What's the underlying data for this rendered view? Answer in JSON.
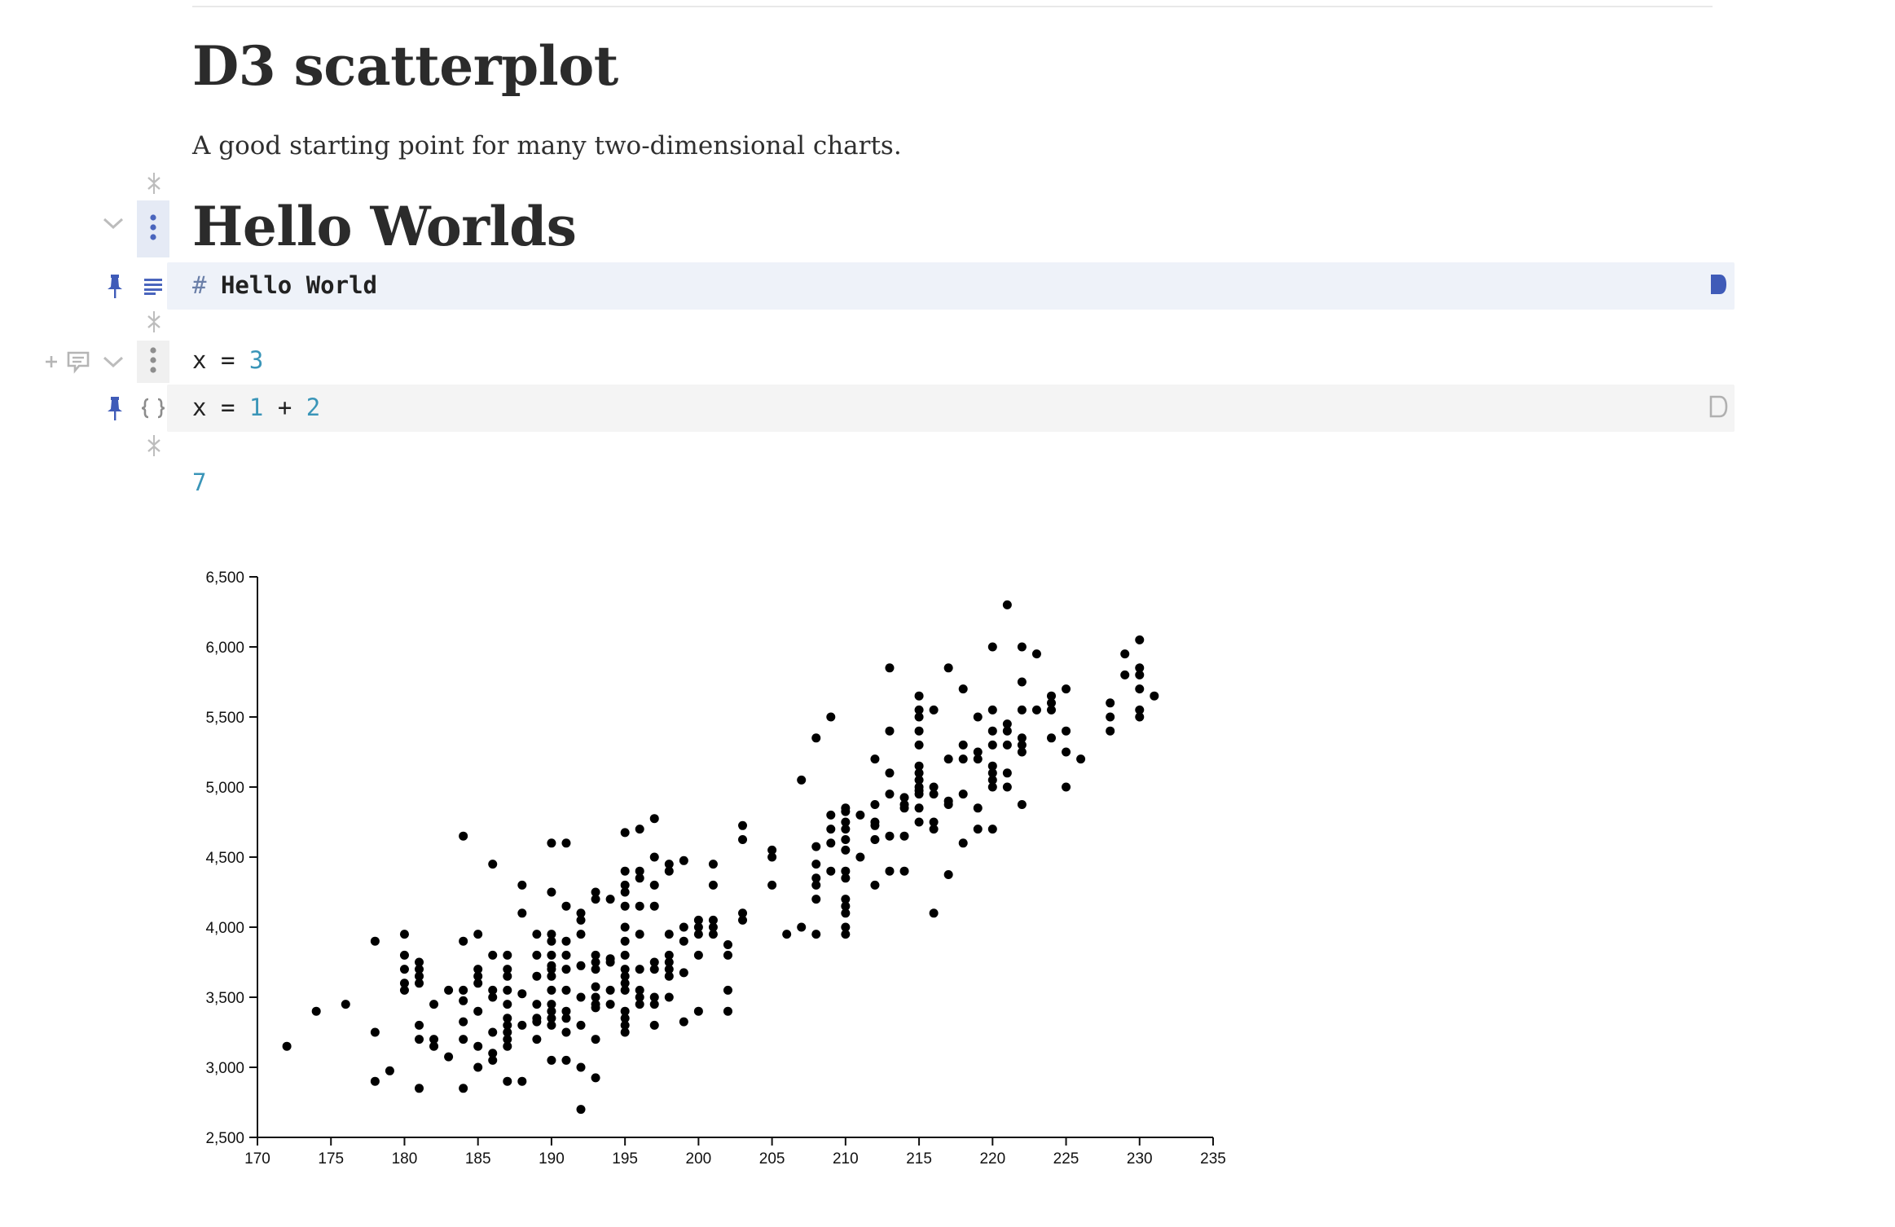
{
  "page": {
    "title": "D3 scatterplot",
    "subtitle": "A good starting point for many two-dimensional charts."
  },
  "cells": [
    {
      "kind": "markdown",
      "rendered_heading": "Hello Worlds",
      "source_hash": "#",
      "source_text": "Hello World",
      "pinned": true,
      "run_state": "stale"
    },
    {
      "kind": "code",
      "output_tokens": {
        "var": "x",
        "eq": "=",
        "value": "3"
      },
      "source_tokens": {
        "var": "x",
        "eq": "=",
        "a": "1",
        "plus": "+",
        "b": "2"
      },
      "pinned": true,
      "run_state": "fresh"
    }
  ],
  "standalone_output": "7",
  "icons": {
    "add": "plus-icon",
    "comment": "comment-icon",
    "collapse": "chevron-down-icon",
    "menu": "vertical-ellipsis-icon",
    "pin": "pin-icon",
    "markdown_mode": "markdown-lines-icon",
    "code_mode": "braces-icon",
    "run": "play-icon",
    "insert": "insert-cell-icon"
  },
  "colors": {
    "accent_blue": "#3f5bb8",
    "number_teal": "#3a95b8",
    "markdown_cell_bg": "#eef2f9",
    "code_cell_bg": "#f4f4f4",
    "gutter_gray": "#b9b9b9"
  },
  "chart_data": {
    "type": "scatter",
    "xlim": [
      170,
      235
    ],
    "ylim": [
      2500,
      6500
    ],
    "x_ticks": [
      170,
      175,
      180,
      185,
      190,
      195,
      200,
      205,
      210,
      215,
      220,
      225,
      230,
      235
    ],
    "y_ticks": [
      2500,
      3000,
      3500,
      4000,
      4500,
      5000,
      5500,
      6000,
      6500
    ],
    "x_tick_labels": [
      "170",
      "175",
      "180",
      "185",
      "190",
      "195",
      "200",
      "205",
      "210",
      "215",
      "220",
      "225",
      "230",
      "235"
    ],
    "y_tick_labels": [
      "2,500",
      "3,000",
      "3,500",
      "4,000",
      "4,500",
      "5,000",
      "5,500",
      "6,000",
      "6,500"
    ],
    "grid": false,
    "points": [
      [
        172,
        3150
      ],
      [
        174,
        3400
      ],
      [
        176,
        3450
      ],
      [
        178,
        3250
      ],
      [
        178,
        2900
      ],
      [
        178,
        3900
      ],
      [
        179,
        2975
      ],
      [
        180,
        3950
      ],
      [
        180,
        3800
      ],
      [
        180,
        3700
      ],
      [
        180,
        3600
      ],
      [
        180,
        3550
      ],
      [
        181,
        3750
      ],
      [
        181,
        3700
      ],
      [
        181,
        3650
      ],
      [
        181,
        3600
      ],
      [
        181,
        3300
      ],
      [
        181,
        3200
      ],
      [
        181,
        2850
      ],
      [
        182,
        3450
      ],
      [
        182,
        3200
      ],
      [
        182,
        3150
      ],
      [
        183,
        3550
      ],
      [
        183,
        3075
      ],
      [
        184,
        4650
      ],
      [
        184,
        3900
      ],
      [
        184,
        3550
      ],
      [
        184,
        3475
      ],
      [
        184,
        3325
      ],
      [
        184,
        3200
      ],
      [
        184,
        2850
      ],
      [
        185,
        3950
      ],
      [
        185,
        3700
      ],
      [
        185,
        3650
      ],
      [
        185,
        3600
      ],
      [
        185,
        3400
      ],
      [
        185,
        3150
      ],
      [
        185,
        3000
      ],
      [
        186,
        4450
      ],
      [
        186,
        3800
      ],
      [
        186,
        3550
      ],
      [
        186,
        3500
      ],
      [
        186,
        3250
      ],
      [
        186,
        3100
      ],
      [
        186,
        3050
      ],
      [
        187,
        3800
      ],
      [
        187,
        3700
      ],
      [
        187,
        3650
      ],
      [
        187,
        3550
      ],
      [
        187,
        3450
      ],
      [
        187,
        3350
      ],
      [
        187,
        3300
      ],
      [
        187,
        3250
      ],
      [
        187,
        3200
      ],
      [
        187,
        3150
      ],
      [
        187,
        2900
      ],
      [
        188,
        4300
      ],
      [
        188,
        4100
      ],
      [
        188,
        3525
      ],
      [
        188,
        3300
      ],
      [
        188,
        2900
      ],
      [
        189,
        3950
      ],
      [
        189,
        3800
      ],
      [
        189,
        3650
      ],
      [
        189,
        3450
      ],
      [
        189,
        3350
      ],
      [
        189,
        3325
      ],
      [
        189,
        3200
      ],
      [
        190,
        4600
      ],
      [
        190,
        4250
      ],
      [
        190,
        3950
      ],
      [
        190,
        3900
      ],
      [
        190,
        3800
      ],
      [
        190,
        3725
      ],
      [
        190,
        3700
      ],
      [
        190,
        3650
      ],
      [
        190,
        3550
      ],
      [
        190,
        3450
      ],
      [
        190,
        3400
      ],
      [
        190,
        3350
      ],
      [
        190,
        3300
      ],
      [
        190,
        3050
      ],
      [
        191,
        4600
      ],
      [
        191,
        4150
      ],
      [
        191,
        3900
      ],
      [
        191,
        3800
      ],
      [
        191,
        3700
      ],
      [
        191,
        3550
      ],
      [
        191,
        3400
      ],
      [
        191,
        3350
      ],
      [
        191,
        3250
      ],
      [
        191,
        3050
      ],
      [
        192,
        4100
      ],
      [
        192,
        4050
      ],
      [
        192,
        3950
      ],
      [
        192,
        3725
      ],
      [
        192,
        3500
      ],
      [
        192,
        3300
      ],
      [
        192,
        3000
      ],
      [
        192,
        2700
      ],
      [
        193,
        4250
      ],
      [
        193,
        4200
      ],
      [
        193,
        3800
      ],
      [
        193,
        3750
      ],
      [
        193,
        3700
      ],
      [
        193,
        3575
      ],
      [
        193,
        3500
      ],
      [
        193,
        3450
      ],
      [
        193,
        3425
      ],
      [
        193,
        3200
      ],
      [
        193,
        2925
      ],
      [
        194,
        4200
      ],
      [
        194,
        3775
      ],
      [
        194,
        3750
      ],
      [
        194,
        3550
      ],
      [
        194,
        3450
      ],
      [
        195,
        4675
      ],
      [
        195,
        4400
      ],
      [
        195,
        4300
      ],
      [
        195,
        4250
      ],
      [
        195,
        4150
      ],
      [
        195,
        4000
      ],
      [
        195,
        3900
      ],
      [
        195,
        3800
      ],
      [
        195,
        3700
      ],
      [
        195,
        3650
      ],
      [
        195,
        3600
      ],
      [
        195,
        3550
      ],
      [
        195,
        3400
      ],
      [
        195,
        3350
      ],
      [
        195,
        3300
      ],
      [
        195,
        3250
      ],
      [
        196,
        4700
      ],
      [
        196,
        4400
      ],
      [
        196,
        4350
      ],
      [
        196,
        4150
      ],
      [
        196,
        3950
      ],
      [
        196,
        3700
      ],
      [
        196,
        3550
      ],
      [
        196,
        3500
      ],
      [
        196,
        3450
      ],
      [
        197,
        4775
      ],
      [
        197,
        4500
      ],
      [
        197,
        4300
      ],
      [
        197,
        4150
      ],
      [
        197,
        3750
      ],
      [
        197,
        3700
      ],
      [
        197,
        3500
      ],
      [
        197,
        3450
      ],
      [
        197,
        3300
      ],
      [
        198,
        4450
      ],
      [
        198,
        4400
      ],
      [
        198,
        3950
      ],
      [
        198,
        3800
      ],
      [
        198,
        3750
      ],
      [
        198,
        3700
      ],
      [
        198,
        3650
      ],
      [
        198,
        3500
      ],
      [
        199,
        4475
      ],
      [
        199,
        4000
      ],
      [
        199,
        3900
      ],
      [
        199,
        3675
      ],
      [
        199,
        3325
      ],
      [
        200,
        4050
      ],
      [
        200,
        4000
      ],
      [
        200,
        3950
      ],
      [
        200,
        3800
      ],
      [
        200,
        3400
      ],
      [
        201,
        4450
      ],
      [
        201,
        4300
      ],
      [
        201,
        4050
      ],
      [
        201,
        4000
      ],
      [
        201,
        3950
      ],
      [
        202,
        3875
      ],
      [
        202,
        3800
      ],
      [
        202,
        3550
      ],
      [
        202,
        3400
      ],
      [
        203,
        4725
      ],
      [
        203,
        4625
      ],
      [
        203,
        4100
      ],
      [
        203,
        4050
      ],
      [
        205,
        4550
      ],
      [
        205,
        4500
      ],
      [
        205,
        4300
      ],
      [
        206,
        3950
      ],
      [
        207,
        5050
      ],
      [
        207,
        4000
      ],
      [
        208,
        5350
      ],
      [
        208,
        4575
      ],
      [
        208,
        4450
      ],
      [
        208,
        4350
      ],
      [
        208,
        4300
      ],
      [
        208,
        4200
      ],
      [
        208,
        3950
      ],
      [
        209,
        5500
      ],
      [
        209,
        4800
      ],
      [
        209,
        4700
      ],
      [
        209,
        4600
      ],
      [
        209,
        4400
      ],
      [
        210,
        4850
      ],
      [
        210,
        4825
      ],
      [
        210,
        4750
      ],
      [
        210,
        4700
      ],
      [
        210,
        4625
      ],
      [
        210,
        4550
      ],
      [
        210,
        4400
      ],
      [
        210,
        4350
      ],
      [
        210,
        4200
      ],
      [
        210,
        4150
      ],
      [
        210,
        4100
      ],
      [
        210,
        4000
      ],
      [
        210,
        3950
      ],
      [
        211,
        4800
      ],
      [
        211,
        4500
      ],
      [
        212,
        5200
      ],
      [
        212,
        4875
      ],
      [
        212,
        4750
      ],
      [
        212,
        4725
      ],
      [
        212,
        4625
      ],
      [
        212,
        4300
      ],
      [
        213,
        5850
      ],
      [
        213,
        5400
      ],
      [
        213,
        5100
      ],
      [
        213,
        4950
      ],
      [
        213,
        4650
      ],
      [
        213,
        4400
      ],
      [
        214,
        4925
      ],
      [
        214,
        4875
      ],
      [
        214,
        4850
      ],
      [
        214,
        4650
      ],
      [
        214,
        4400
      ],
      [
        215,
        5650
      ],
      [
        215,
        5550
      ],
      [
        215,
        5500
      ],
      [
        215,
        5400
      ],
      [
        215,
        5300
      ],
      [
        215,
        5150
      ],
      [
        215,
        5100
      ],
      [
        215,
        5050
      ],
      [
        215,
        5000
      ],
      [
        215,
        4975
      ],
      [
        215,
        4950
      ],
      [
        215,
        4850
      ],
      [
        215,
        4750
      ],
      [
        216,
        5550
      ],
      [
        216,
        5000
      ],
      [
        216,
        4950
      ],
      [
        216,
        4750
      ],
      [
        216,
        4700
      ],
      [
        216,
        4100
      ],
      [
        217,
        5850
      ],
      [
        217,
        5200
      ],
      [
        217,
        4900
      ],
      [
        217,
        4875
      ],
      [
        217,
        4375
      ],
      [
        218,
        5700
      ],
      [
        218,
        5300
      ],
      [
        218,
        5200
      ],
      [
        218,
        4950
      ],
      [
        218,
        4600
      ],
      [
        219,
        5500
      ],
      [
        219,
        5250
      ],
      [
        219,
        5200
      ],
      [
        219,
        4850
      ],
      [
        219,
        4700
      ],
      [
        220,
        6000
      ],
      [
        220,
        5550
      ],
      [
        220,
        5400
      ],
      [
        220,
        5300
      ],
      [
        220,
        5150
      ],
      [
        220,
        5100
      ],
      [
        220,
        5050
      ],
      [
        220,
        5000
      ],
      [
        220,
        4700
      ],
      [
        221,
        6300
      ],
      [
        221,
        5450
      ],
      [
        221,
        5400
      ],
      [
        221,
        5300
      ],
      [
        221,
        5100
      ],
      [
        221,
        5000
      ],
      [
        222,
        6000
      ],
      [
        222,
        5750
      ],
      [
        222,
        5550
      ],
      [
        222,
        5350
      ],
      [
        222,
        5300
      ],
      [
        222,
        5250
      ],
      [
        222,
        4875
      ],
      [
        223,
        5950
      ],
      [
        223,
        5550
      ],
      [
        224,
        5650
      ],
      [
        224,
        5600
      ],
      [
        224,
        5550
      ],
      [
        224,
        5350
      ],
      [
        225,
        5700
      ],
      [
        225,
        5400
      ],
      [
        225,
        5250
      ],
      [
        225,
        5000
      ],
      [
        226,
        5200
      ],
      [
        228,
        5600
      ],
      [
        228,
        5500
      ],
      [
        228,
        5400
      ],
      [
        229,
        5950
      ],
      [
        229,
        5800
      ],
      [
        230,
        6050
      ],
      [
        230,
        5850
      ],
      [
        230,
        5800
      ],
      [
        230,
        5700
      ],
      [
        230,
        5550
      ],
      [
        230,
        5500
      ],
      [
        231,
        5650
      ]
    ]
  }
}
